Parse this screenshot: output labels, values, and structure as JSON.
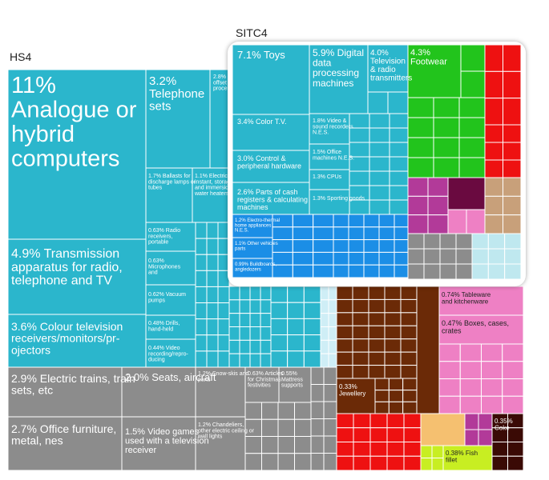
{
  "chart_data": [
    {
      "type": "heatmap",
      "title": "HS4",
      "colors": {
        "electronics": "#2bb6cc",
        "vehicles_misc": "#8c8c8c",
        "red": "#ee1111",
        "brown": "#6b2a07",
        "pink": "#ee80c4",
        "lime": "#c8ee22",
        "white_blue": "#cfeef6",
        "dark": "#3a0a05",
        "orange": "#f5c070",
        "purple": "#b23a99"
      },
      "labeled_tiles": [
        {
          "name": "Analogue or hybrid computers",
          "share": "11%",
          "value": 11,
          "group": "electronics"
        },
        {
          "name": "Telephone sets",
          "share": "3.2%",
          "value": 3.2,
          "group": "electronics"
        },
        {
          "name": "Offset printing process",
          "share": "2.8%",
          "value": 2.8,
          "group": "electronics"
        },
        {
          "name": "Transmission apparatus for radio, telephone and TV",
          "share": "4.9%",
          "value": 4.9,
          "group": "electronics"
        },
        {
          "name": "Ballasts for discharge lamps or tubes",
          "share": "1.7%",
          "value": 1.7,
          "group": "electronics"
        },
        {
          "name": "Electric instant, storage and immersion water heaters",
          "share": "1.1%",
          "value": 1.1,
          "group": "electronics"
        },
        {
          "name": "Radio receivers, portable",
          "share": "0.63%",
          "value": 0.63,
          "group": "electronics"
        },
        {
          "name": "Microphones and",
          "share": "0.63%",
          "value": 0.63,
          "group": "electronics"
        },
        {
          "name": "Vacuum pumps",
          "share": "0.62%",
          "value": 0.62,
          "group": "electronics"
        },
        {
          "name": "Drills, hand-held",
          "share": "0.48%",
          "value": 0.48,
          "group": "electronics"
        },
        {
          "name": "Video recording/reproducing",
          "share": "0.44%",
          "value": 0.44,
          "group": "electronics"
        },
        {
          "name": "Colour television receivers/monitors/projectors",
          "share": "3.6%",
          "value": 3.6,
          "group": "electronics"
        },
        {
          "name": "Electric trains, train sets, etc",
          "share": "2.9%",
          "value": 2.9,
          "group": "vehicles_misc"
        },
        {
          "name": "Seats, aircraft",
          "share": "2.0%",
          "value": 2.0,
          "group": "vehicles_misc"
        },
        {
          "name": "Snow-skis and parts",
          "share": "1.2%",
          "value": 1.2,
          "group": "vehicles_misc"
        },
        {
          "name": "Articles for Christmas festivities",
          "share": "0.63%",
          "value": 0.63,
          "group": "vehicles_misc"
        },
        {
          "name": "Mattress supports",
          "share": "0.55%",
          "value": 0.55,
          "group": "vehicles_misc"
        },
        {
          "name": "Office furniture, metal, nes",
          "share": "2.7%",
          "value": 2.7,
          "group": "vehicles_misc"
        },
        {
          "name": "Video games used with a television receiver",
          "share": "1.5%",
          "value": 1.5,
          "group": "vehicles_misc"
        },
        {
          "name": "Chandeliers, other electric ceiling or wall lights",
          "share": "1.2%",
          "value": 1.2,
          "group": "vehicles_misc"
        },
        {
          "name": "Tableware and kitchenware",
          "share": "0.74%",
          "value": 0.74,
          "group": "pink"
        },
        {
          "name": "Boxes, cases, crates",
          "share": "0.47%",
          "value": 0.47,
          "group": "pink"
        },
        {
          "name": "Jewellery",
          "share": "0.33%",
          "value": 0.33,
          "group": "brown"
        },
        {
          "name": "Fish fillet",
          "share": "0.38%",
          "value": 0.38,
          "group": "lime"
        },
        {
          "name": "Coke",
          "share": "0.35%",
          "value": 0.35,
          "group": "dark"
        }
      ],
      "labels": [
        {
          "key": "a",
          "text": "11%\nAnalogue or\nhybrid\ncomputers"
        },
        {
          "key": "b",
          "text": "3.2%\nTelephone\nsets"
        },
        {
          "key": "c",
          "text": "2.8% P\noffset p\nprocess"
        },
        {
          "key": "d",
          "text": "4.9% Transmission\napparatus for radio,\ntelephone and TV"
        },
        {
          "key": "e",
          "text": "1.7% Ballasts for\ndischarge lamps or\ntubes"
        },
        {
          "key": "f",
          "text": "1.1% Electric\ninstant, storage\nand immersion\nwater heaters"
        },
        {
          "key": "g",
          "text": "0.63% Radio\nreceivers,\nportable"
        },
        {
          "key": "h",
          "text": "0.63%\nMicrophones\nand"
        },
        {
          "key": "i",
          "text": "0.62% Vacuum\npumps"
        },
        {
          "key": "j",
          "text": "0.48% Drills,\nhand-held"
        },
        {
          "key": "k",
          "text": "0.44% Video\nrecording/repro-\nducing"
        },
        {
          "key": "l",
          "text": "3.6% Colour television\nreceivers/monitors/pr-\nojectors"
        },
        {
          "key": "m",
          "text": "2.9% Electric trains, train\nsets, etc"
        },
        {
          "key": "n",
          "text": "2.0% Seats, aircraft"
        },
        {
          "key": "o",
          "text": "1.2% Snow-skis and\nparts"
        },
        {
          "key": "p",
          "text": "0.63% Articles\nfor Christmas\nfestivities"
        },
        {
          "key": "q",
          "text": "0.55%\nMattress\nsupports"
        },
        {
          "key": "r",
          "text": "2.7% Office furniture,\nmetal, nes"
        },
        {
          "key": "s",
          "text": "1.5% Video games\nused with a television\nreceiver"
        },
        {
          "key": "t",
          "text": "1.2% Chandeliers,\nother electric ceiling or\nwall lights"
        },
        {
          "key": "u",
          "text": "0.74% Tableware\nand kitchenware"
        },
        {
          "key": "v",
          "text": "0.47% Boxes, cases,\ncrates"
        },
        {
          "key": "w",
          "text": "0.33%\nJewellery"
        },
        {
          "key": "x",
          "text": "0.38% Fish\nfillet"
        },
        {
          "key": "y",
          "text": "0.35%\nCoke"
        }
      ]
    },
    {
      "type": "heatmap",
      "title": "SITC4",
      "colors": {
        "electronics": "#2bb6cc",
        "blue": "#1b8ee6",
        "green": "#22c41c",
        "red": "#ee1111",
        "pink": "#ee80c4",
        "purple": "#b23a99",
        "maroon": "#6a0a40",
        "gray": "#8c8c8c",
        "tan": "#c8a07a",
        "lightblue": "#bfe8ef"
      },
      "labeled_tiles": [
        {
          "name": "Toys",
          "share": "7.1%",
          "value": 7.1,
          "group": "electronics"
        },
        {
          "name": "Digital data processing machines",
          "share": "5.9%",
          "value": 5.9,
          "group": "electronics"
        },
        {
          "name": "Television & radio transmitters",
          "share": "4.0%",
          "value": 4.0,
          "group": "electronics"
        },
        {
          "name": "Footwear",
          "share": "4.3%",
          "value": 4.3,
          "group": "green"
        },
        {
          "name": "Color T.V.",
          "share": "3.4%",
          "value": 3.4,
          "group": "electronics"
        },
        {
          "name": "Control & peripheral hardware",
          "share": "3.0%",
          "value": 3.0,
          "group": "electronics"
        },
        {
          "name": "Parts of cash registers & calculating machines",
          "share": "2.6%",
          "value": 2.6,
          "group": "electronics"
        },
        {
          "name": "Video & sound recorders N.E.S.",
          "share": "1.8%",
          "value": 1.8,
          "group": "electronics"
        },
        {
          "name": "Office machines N.E.S.",
          "share": "1.5%",
          "value": 1.5,
          "group": "electronics"
        },
        {
          "name": "CPUs",
          "share": "1.3%",
          "value": 1.3,
          "group": "electronics"
        },
        {
          "name": "Sporting goods",
          "share": "1.3%",
          "value": 1.3,
          "group": "electronics"
        },
        {
          "name": "Electro-thermal home appliances N.E.S.",
          "share": "1.2%",
          "value": 1.2,
          "group": "blue"
        },
        {
          "name": "Other vehicles parts",
          "share": "1.1%",
          "value": 1.1,
          "group": "blue"
        },
        {
          "name": "Buildboards, angledozers",
          "share": "0.99%",
          "value": 0.99,
          "group": "blue"
        }
      ],
      "labels": [
        {
          "key": "a",
          "text": "7.1% Toys"
        },
        {
          "key": "b",
          "text": "5.9% Digital\ndata\nprocessing\nmachines"
        },
        {
          "key": "c",
          "text": "4.0%\nTelevision\n& radio\ntransmitters"
        },
        {
          "key": "d",
          "text": "4.3%\nFootwear"
        },
        {
          "key": "e",
          "text": "3.4% Color T.V."
        },
        {
          "key": "f",
          "text": "1.8% Video &\nsound recorders\nN.E.S."
        },
        {
          "key": "g",
          "text": "3.0% Control &\nperipheral hardware"
        },
        {
          "key": "h",
          "text": "1.5% Office\nmachines N.E.S."
        },
        {
          "key": "i",
          "text": "1.3% CPUs"
        },
        {
          "key": "j",
          "text": "2.6% Parts of cash\nregisters & calculating\nmachines"
        },
        {
          "key": "k",
          "text": "1.3% Sporting goods"
        },
        {
          "key": "l",
          "text": "1.2% Electro-thermal\nhome appliances\nN.E.S."
        },
        {
          "key": "m",
          "text": "1.1% Other vehicles\nparts"
        },
        {
          "key": "n",
          "text": "0.99% Buildboards,\nangledozers"
        }
      ]
    }
  ]
}
